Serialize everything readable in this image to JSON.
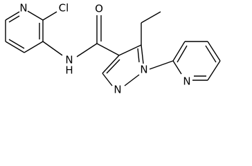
{
  "atoms": {
    "pyridine_n": "N",
    "chlorine": "Cl",
    "amide_n": "N",
    "amide_h": "H",
    "oxygen": "O",
    "pyrazole_n1": "N",
    "pyrazole_n2": "N",
    "pyridyl_n": "N"
  }
}
